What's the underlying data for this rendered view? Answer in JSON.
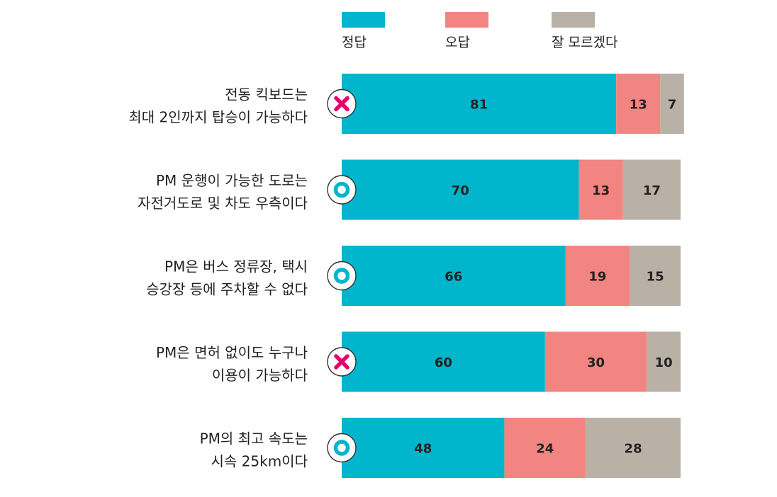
{
  "colors": {
    "correct": "#00b5cc",
    "wrong": "#f28582",
    "unknown": "#b9b1a6",
    "mark_o": "#00b5cc",
    "mark_x": "#e5006e"
  },
  "chart_data": {
    "type": "bar",
    "orientation": "horizontal",
    "stacked": true,
    "unit": "%",
    "xlim": [
      0,
      100
    ],
    "legend_position": "top",
    "categories": [
      [
        "전동 킥보드는",
        "최대 2인까지 탑승이 가능하다"
      ],
      [
        "PM 운행이 가능한 도로는",
        "자전거도로 및 차도 우측이다"
      ],
      [
        "PM은 버스 정류장, 택시",
        "승강장 등에 주차할 수 없다"
      ],
      [
        "PM은 면허 없이도 누구나",
        "이용이 가능하다"
      ],
      [
        "PM의 최고 속도는",
        "시속 25km이다"
      ]
    ],
    "answer_marks": [
      "x-icon",
      "o-icon",
      "o-icon",
      "x-icon",
      "o-icon"
    ],
    "series": [
      {
        "name": "정답",
        "values": [
          81,
          70,
          66,
          60,
          48
        ]
      },
      {
        "name": "오답",
        "values": [
          13,
          13,
          19,
          30,
          24
        ]
      },
      {
        "name": "잘 모르겠다",
        "values": [
          7,
          17,
          15,
          10,
          28
        ]
      }
    ]
  }
}
